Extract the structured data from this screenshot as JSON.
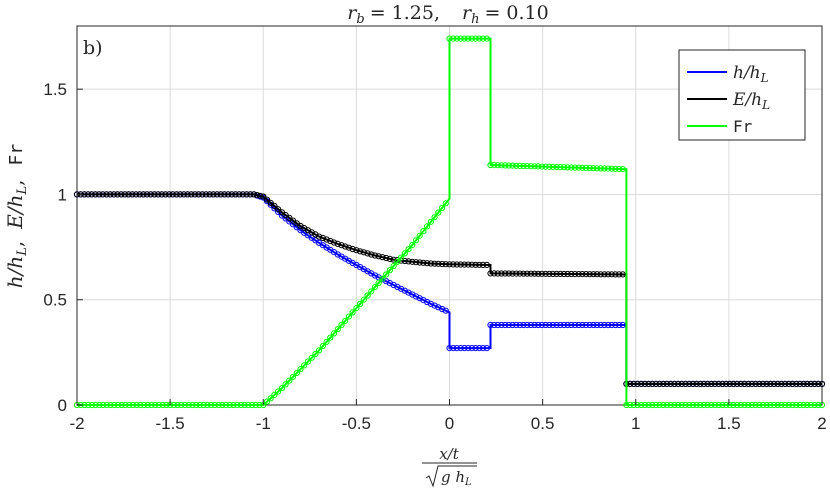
{
  "chart_data": {
    "type": "line",
    "title": {
      "rb_label": "r",
      "rb_sub": "b",
      "rb_value": "= 1.25,",
      "rh_label": "r",
      "rh_sub": "h",
      "rh_value": "= 0.10"
    },
    "panel_label": "b)",
    "xlim": [
      -2,
      2
    ],
    "ylim": [
      0,
      1.8
    ],
    "xticks": [
      -2,
      -1.5,
      -1,
      -0.5,
      0,
      0.5,
      1,
      1.5,
      2
    ],
    "xtick_labels": [
      "-2",
      "-1.5",
      "-1",
      "-0.5",
      "0",
      "0.5",
      "1",
      "1.5",
      "2"
    ],
    "yticks": [
      0,
      0.5,
      1,
      1.5
    ],
    "ytick_labels": [
      "0",
      "0.5",
      "1",
      "1.5"
    ],
    "xlabel": {
      "numerator": "x/t",
      "denominator": "g h",
      "denominator_sub": "L"
    },
    "ylabel": {
      "part1": "h/h",
      "part1_sub": "L",
      "sep1": ",",
      "part2": "E/h",
      "part2_sub": "L",
      "sep2": ",",
      "part3": "Fr"
    },
    "grid": true,
    "legend_position": "top-right",
    "series": [
      {
        "name": "h/h_L",
        "legend_main": "h/h",
        "legend_sub": "L",
        "legend_mono": false,
        "color": "#0000ff",
        "x": [
          -2,
          -1.05,
          -1.0,
          -0.9,
          -0.8,
          -0.7,
          -0.6,
          -0.5,
          -0.4,
          -0.3,
          -0.2,
          -0.1,
          0.0,
          0.0,
          0.22,
          0.22,
          0.95,
          0.95,
          2.0
        ],
        "y": [
          1.0,
          1.0,
          0.985,
          0.9,
          0.83,
          0.77,
          0.715,
          0.665,
          0.615,
          0.57,
          0.525,
          0.48,
          0.44,
          0.27,
          0.27,
          0.38,
          0.38,
          0.1,
          0.1
        ]
      },
      {
        "name": "E/h_L",
        "legend_main": "E/h",
        "legend_sub": "L",
        "legend_mono": false,
        "color": "#000000",
        "x": [
          -2,
          -1.05,
          -1.0,
          -0.9,
          -0.8,
          -0.7,
          -0.6,
          -0.5,
          -0.4,
          -0.3,
          -0.2,
          -0.1,
          0.0,
          0.22,
          0.22,
          0.95,
          0.95,
          2.0
        ],
        "y": [
          1.0,
          1.0,
          0.99,
          0.915,
          0.85,
          0.8,
          0.765,
          0.735,
          0.71,
          0.69,
          0.68,
          0.672,
          0.668,
          0.665,
          0.625,
          0.62,
          0.1,
          0.1
        ]
      },
      {
        "name": "Fr",
        "legend_main": "Fr",
        "legend_sub": "",
        "legend_mono": true,
        "color": "#00ff00",
        "x": [
          -2,
          -1.0,
          -0.9,
          -0.8,
          -0.7,
          -0.6,
          -0.5,
          -0.4,
          -0.3,
          -0.2,
          -0.1,
          0.0,
          0.0,
          0.22,
          0.22,
          0.95,
          0.95,
          2.0
        ],
        "y": [
          0.0,
          0.0,
          0.08,
          0.17,
          0.26,
          0.36,
          0.46,
          0.56,
          0.66,
          0.76,
          0.87,
          0.98,
          1.74,
          1.74,
          1.14,
          1.12,
          0.0,
          0.0
        ]
      }
    ]
  }
}
